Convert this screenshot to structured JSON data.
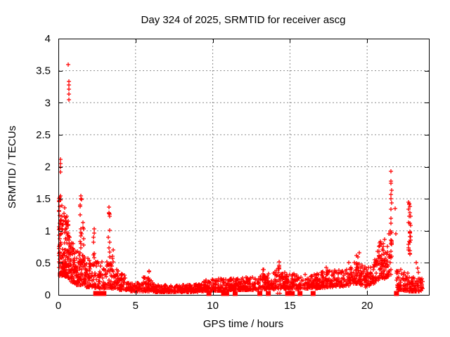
{
  "window": {
    "title": "Day 324 of 2025, SRMTID for receiver ascg"
  },
  "chart_data": {
    "type": "scatter",
    "title": "Day 324 of 2025, SRMTID for receiver ascg",
    "xlabel": "GPS time / hours",
    "ylabel": "SRMTID / TECUs",
    "xlim": [
      0,
      24
    ],
    "ylim": [
      0,
      4
    ],
    "xticks": [
      0,
      5,
      10,
      15,
      20
    ],
    "yticks": [
      0,
      0.5,
      1,
      1.5,
      2,
      2.5,
      3,
      3.5,
      4
    ],
    "grid": true,
    "legend": "none",
    "marker": "plus",
    "marker_color": "#ff0000",
    "grid_color": "#8a8a8a",
    "border_color": "#000000",
    "background": "#ffffff",
    "seed": 1324,
    "outlier_points": [
      [
        0.66,
        3.6
      ],
      [
        0.67,
        3.33
      ],
      [
        0.68,
        3.28
      ],
      [
        0.67,
        3.21
      ],
      [
        0.68,
        3.13
      ],
      [
        0.67,
        3.05
      ],
      [
        0.13,
        2.12
      ],
      [
        0.12,
        2.05
      ],
      [
        0.14,
        1.99
      ],
      [
        0.13,
        1.92
      ],
      [
        0.05,
        1.5
      ],
      [
        0.06,
        1.02
      ],
      [
        0.05,
        0.72
      ],
      [
        0.04,
        0.52
      ],
      [
        1.44,
        1.55
      ],
      [
        1.47,
        1.5
      ],
      [
        3.28,
        1.37
      ],
      [
        21.54,
        1.93
      ],
      [
        21.56,
        1.77
      ],
      [
        21.55,
        1.74
      ],
      [
        21.57,
        1.63
      ],
      [
        21.54,
        1.57
      ],
      [
        21.56,
        1.5
      ],
      [
        21.58,
        1.44
      ],
      [
        21.8,
        1.35
      ],
      [
        21.85,
        0.95
      ],
      [
        22.7,
        1.45
      ],
      [
        22.74,
        1.43
      ],
      [
        22.72,
        1.41
      ],
      [
        22.77,
        1.38
      ],
      [
        22.69,
        1.34
      ],
      [
        22.75,
        1.28
      ],
      [
        23.2,
        0.5
      ],
      [
        23.25,
        0.42
      ],
      [
        23.3,
        0.35
      ],
      [
        19.5,
        0.66
      ],
      [
        14.32,
        0.52
      ],
      [
        14.2,
        0.02
      ],
      [
        14.35,
        0.02
      ]
    ],
    "zero_marker_x": [
      2.42,
      2.52,
      2.68,
      2.95,
      9.75,
      10.7,
      10.9,
      11.45,
      13.05,
      13.6,
      14.85,
      15.15,
      15.65,
      16.5,
      21.9
    ],
    "bands": [
      {
        "x0": 0.03,
        "x1": 0.3,
        "n": 70,
        "lo0": 0.3,
        "hi0": 1.55,
        "lo1": 0.3,
        "hi1": 1.35
      },
      {
        "x0": 0.3,
        "x1": 0.75,
        "n": 110,
        "lo0": 0.3,
        "hi0": 1.45,
        "lo1": 0.25,
        "hi1": 1.1
      },
      {
        "x0": 0.75,
        "x1": 1.15,
        "n": 70,
        "lo0": 0.2,
        "hi0": 0.9,
        "lo1": 0.18,
        "hi1": 0.7
      },
      {
        "x0": 1.15,
        "x1": 1.8,
        "n": 80,
        "lo0": 0.15,
        "hi0": 0.75,
        "lo1": 0.15,
        "hi1": 0.6
      },
      {
        "x0": 1.8,
        "x1": 2.7,
        "n": 85,
        "lo0": 0.12,
        "hi0": 0.65,
        "lo1": 0.1,
        "hi1": 0.5
      },
      {
        "x0": 2.7,
        "x1": 3.7,
        "n": 80,
        "lo0": 0.1,
        "hi0": 0.55,
        "lo1": 0.1,
        "hi1": 0.5
      },
      {
        "x0": 3.7,
        "x1": 4.7,
        "n": 75,
        "lo0": 0.08,
        "hi0": 0.4,
        "lo1": 0.07,
        "hi1": 0.3
      },
      {
        "x0": 4.7,
        "x1": 5.5,
        "n": 60,
        "lo0": 0.06,
        "hi0": 0.25,
        "lo1": 0.05,
        "hi1": 0.18
      },
      {
        "x0": 5.5,
        "x1": 6.2,
        "n": 60,
        "lo0": 0.05,
        "hi0": 0.32,
        "lo1": 0.05,
        "hi1": 0.2
      },
      {
        "x0": 6.2,
        "x1": 9.4,
        "n": 270,
        "lo0": 0.04,
        "hi0": 0.15,
        "lo1": 0.05,
        "hi1": 0.17
      },
      {
        "x0": 9.4,
        "x1": 11.2,
        "n": 150,
        "lo0": 0.06,
        "hi0": 0.24,
        "lo1": 0.07,
        "hi1": 0.26
      },
      {
        "x0": 11.2,
        "x1": 13.1,
        "n": 160,
        "lo0": 0.07,
        "hi0": 0.26,
        "lo1": 0.08,
        "hi1": 0.3
      },
      {
        "x0": 13.1,
        "x1": 14.1,
        "n": 85,
        "lo0": 0.08,
        "hi0": 0.33,
        "lo1": 0.09,
        "hi1": 0.35
      },
      {
        "x0": 14.1,
        "x1": 14.7,
        "n": 55,
        "lo0": 0.1,
        "hi0": 0.45,
        "lo1": 0.1,
        "hi1": 0.35
      },
      {
        "x0": 14.7,
        "x1": 16.6,
        "n": 150,
        "lo0": 0.08,
        "hi0": 0.33,
        "lo1": 0.1,
        "hi1": 0.32
      },
      {
        "x0": 16.6,
        "x1": 18.8,
        "n": 190,
        "lo0": 0.1,
        "hi0": 0.35,
        "lo1": 0.14,
        "hi1": 0.42
      },
      {
        "x0": 18.8,
        "x1": 19.9,
        "n": 100,
        "lo0": 0.18,
        "hi0": 0.55,
        "lo1": 0.15,
        "hi1": 0.45
      },
      {
        "x0": 19.9,
        "x1": 20.5,
        "n": 55,
        "lo0": 0.12,
        "hi0": 0.42,
        "lo1": 0.18,
        "hi1": 0.5
      },
      {
        "x0": 20.5,
        "x1": 21.1,
        "n": 65,
        "lo0": 0.2,
        "hi0": 0.7,
        "lo1": 0.28,
        "hi1": 0.85
      },
      {
        "x0": 21.1,
        "x1": 21.6,
        "n": 45,
        "lo0": 0.25,
        "hi0": 0.95,
        "lo1": 0.3,
        "hi1": 1.0
      },
      {
        "x0": 21.9,
        "x1": 22.7,
        "n": 75,
        "lo0": 0.08,
        "hi0": 0.45,
        "lo1": 0.06,
        "hi1": 0.35
      },
      {
        "x0": 22.7,
        "x1": 23.6,
        "n": 85,
        "lo0": 0.05,
        "hi0": 0.32,
        "lo1": 0.05,
        "hi1": 0.25
      }
    ],
    "spikes": [
      {
        "x": 0.13,
        "n": 4,
        "lo": 1.0,
        "hi": 1.55,
        "jx": 0.03
      },
      {
        "x": 1.45,
        "n": 13,
        "lo": 0.5,
        "hi": 1.5,
        "jx": 0.05
      },
      {
        "x": 1.62,
        "n": 9,
        "lo": 0.4,
        "hi": 1.15,
        "jx": 0.04
      },
      {
        "x": 2.3,
        "n": 8,
        "lo": 0.45,
        "hi": 1.05,
        "jx": 0.04
      },
      {
        "x": 3.3,
        "n": 12,
        "lo": 0.4,
        "hi": 1.3,
        "jx": 0.05
      },
      {
        "x": 3.55,
        "n": 6,
        "lo": 0.3,
        "hi": 0.75,
        "jx": 0.04
      },
      {
        "x": 5.85,
        "n": 6,
        "lo": 0.15,
        "hi": 0.38,
        "jx": 0.05
      },
      {
        "x": 13.3,
        "n": 5,
        "lo": 0.2,
        "hi": 0.42,
        "jx": 0.05
      },
      {
        "x": 14.3,
        "n": 6,
        "lo": 0.2,
        "hi": 0.5,
        "jx": 0.05
      },
      {
        "x": 17.4,
        "n": 7,
        "lo": 0.2,
        "hi": 0.45,
        "jx": 0.06
      },
      {
        "x": 19.35,
        "n": 7,
        "lo": 0.3,
        "hi": 0.63,
        "jx": 0.06
      },
      {
        "x": 20.8,
        "n": 8,
        "lo": 0.35,
        "hi": 0.85,
        "jx": 0.05
      },
      {
        "x": 21.55,
        "n": 16,
        "lo": 0.55,
        "hi": 1.35,
        "jx": 0.04
      },
      {
        "x": 22.75,
        "n": 20,
        "lo": 0.6,
        "hi": 1.3,
        "jx": 0.07
      }
    ]
  }
}
